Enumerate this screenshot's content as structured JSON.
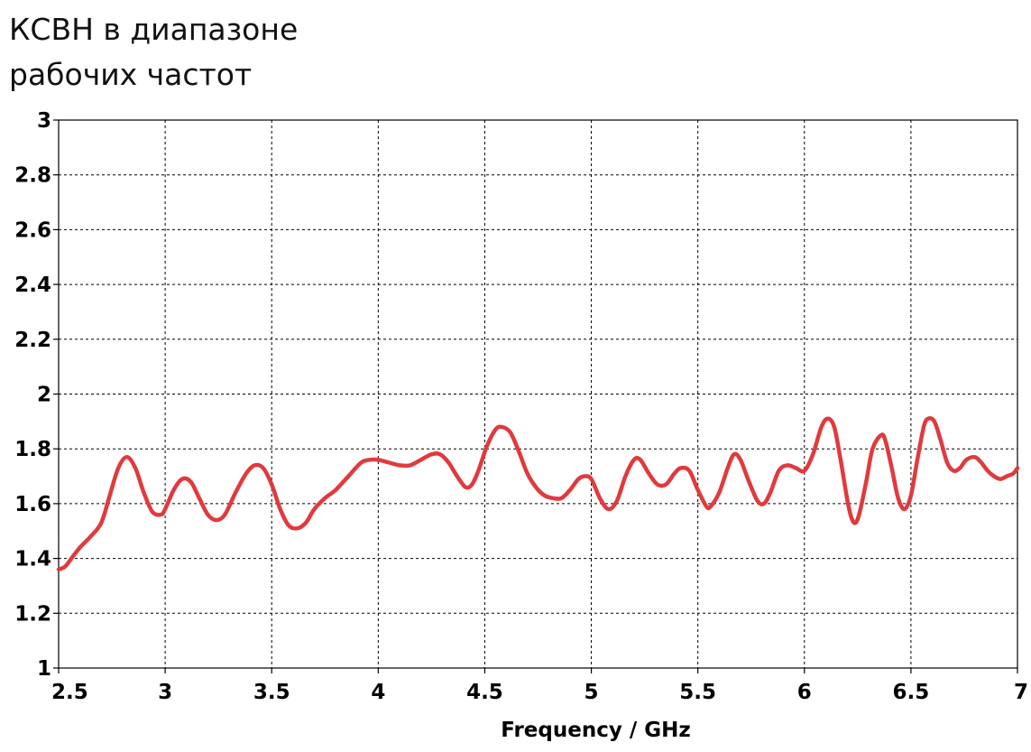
{
  "chart_data": {
    "type": "line",
    "title_lines": [
      "КСВН в диапазоне",
      "рабочих частот"
    ],
    "xlabel": "Frequency / GHz",
    "ylabel": "",
    "xlim": [
      2.5,
      7
    ],
    "ylim": [
      1,
      3
    ],
    "x_ticks": [
      "2.5",
      "3",
      "3.5",
      "4",
      "4.5",
      "5",
      "5.5",
      "6",
      "6.5",
      "7"
    ],
    "y_ticks": [
      "1",
      "1.2",
      "1.4",
      "1.6",
      "1.8",
      "2",
      "2.2",
      "2.4",
      "2.6",
      "2.8",
      "3"
    ],
    "grid": true,
    "line_color": "#e03a3e",
    "series": [
      {
        "name": "",
        "x": [
          2.5,
          2.53,
          2.56,
          2.6,
          2.65,
          2.7,
          2.74,
          2.78,
          2.82,
          2.86,
          2.9,
          2.94,
          2.98,
          3.0,
          3.04,
          3.08,
          3.12,
          3.16,
          3.2,
          3.24,
          3.28,
          3.33,
          3.38,
          3.42,
          3.46,
          3.5,
          3.54,
          3.58,
          3.62,
          3.66,
          3.7,
          3.75,
          3.8,
          3.86,
          3.92,
          3.96,
          4.0,
          4.05,
          4.1,
          4.15,
          4.2,
          4.25,
          4.29,
          4.33,
          4.37,
          4.41,
          4.44,
          4.47,
          4.51,
          4.55,
          4.58,
          4.62,
          4.66,
          4.7,
          4.74,
          4.78,
          4.82,
          4.86,
          4.9,
          4.94,
          4.97,
          5.0,
          5.04,
          5.08,
          5.12,
          5.16,
          5.2,
          5.23,
          5.27,
          5.31,
          5.35,
          5.39,
          5.42,
          5.46,
          5.5,
          5.54,
          5.56,
          5.6,
          5.64,
          5.67,
          5.7,
          5.74,
          5.78,
          5.81,
          5.84,
          5.88,
          5.92,
          5.96,
          6.0,
          6.04,
          6.08,
          6.11,
          6.14,
          6.17,
          6.2,
          6.22,
          6.24,
          6.26,
          6.29,
          6.32,
          6.36,
          6.38,
          6.41,
          6.44,
          6.47,
          6.5,
          6.53,
          6.56,
          6.58,
          6.61,
          6.64,
          6.67,
          6.7,
          6.73,
          6.76,
          6.8,
          6.83,
          6.86,
          6.89,
          6.92,
          6.95,
          6.98,
          7.0
        ],
        "y": [
          1.36,
          1.37,
          1.4,
          1.44,
          1.48,
          1.53,
          1.63,
          1.73,
          1.77,
          1.73,
          1.64,
          1.57,
          1.56,
          1.58,
          1.65,
          1.69,
          1.68,
          1.62,
          1.56,
          1.54,
          1.56,
          1.64,
          1.71,
          1.74,
          1.73,
          1.67,
          1.58,
          1.52,
          1.51,
          1.53,
          1.58,
          1.62,
          1.65,
          1.7,
          1.75,
          1.76,
          1.76,
          1.75,
          1.74,
          1.74,
          1.76,
          1.78,
          1.78,
          1.75,
          1.7,
          1.66,
          1.67,
          1.72,
          1.81,
          1.87,
          1.88,
          1.86,
          1.79,
          1.71,
          1.66,
          1.63,
          1.62,
          1.62,
          1.65,
          1.69,
          1.7,
          1.69,
          1.62,
          1.58,
          1.61,
          1.7,
          1.76,
          1.76,
          1.71,
          1.67,
          1.67,
          1.71,
          1.73,
          1.72,
          1.65,
          1.59,
          1.59,
          1.64,
          1.73,
          1.78,
          1.76,
          1.68,
          1.61,
          1.6,
          1.64,
          1.72,
          1.74,
          1.73,
          1.72,
          1.78,
          1.88,
          1.91,
          1.88,
          1.76,
          1.62,
          1.55,
          1.53,
          1.57,
          1.68,
          1.8,
          1.85,
          1.83,
          1.73,
          1.62,
          1.58,
          1.63,
          1.76,
          1.88,
          1.91,
          1.9,
          1.83,
          1.75,
          1.72,
          1.73,
          1.76,
          1.77,
          1.75,
          1.72,
          1.7,
          1.69,
          1.7,
          1.71,
          1.73
        ]
      }
    ]
  }
}
